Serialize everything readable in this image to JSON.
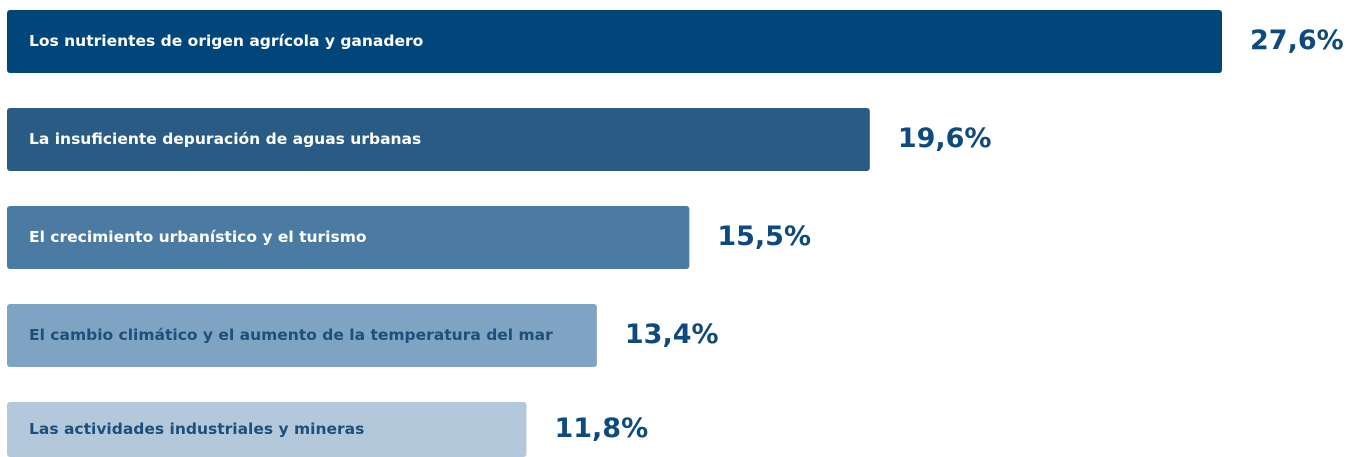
{
  "chart_data": {
    "type": "bar",
    "orientation": "horizontal",
    "categories": [
      "Los nutrientes de origen agrícola y ganadero",
      "La insuficiente depuración de aguas urbanas",
      "El crecimiento urbanístico y el turismo",
      "El cambio climático y el aumento de la temperatura del mar",
      "Las actividades industriales y mineras"
    ],
    "values": [
      27.6,
      19.6,
      15.5,
      13.4,
      11.8
    ],
    "value_labels": [
      "27,6%",
      "19,6%",
      "15,5%",
      "13,4%",
      "11,8%"
    ],
    "colors": [
      "#00467a",
      "#2a5b84",
      "#4b7ba3",
      "#7fa3c2",
      "#b4c8db"
    ],
    "label_colors": [
      "#ffffff",
      "#ffffff",
      "#ffffff",
      "#1d4f7c",
      "#1d4f7c"
    ]
  }
}
